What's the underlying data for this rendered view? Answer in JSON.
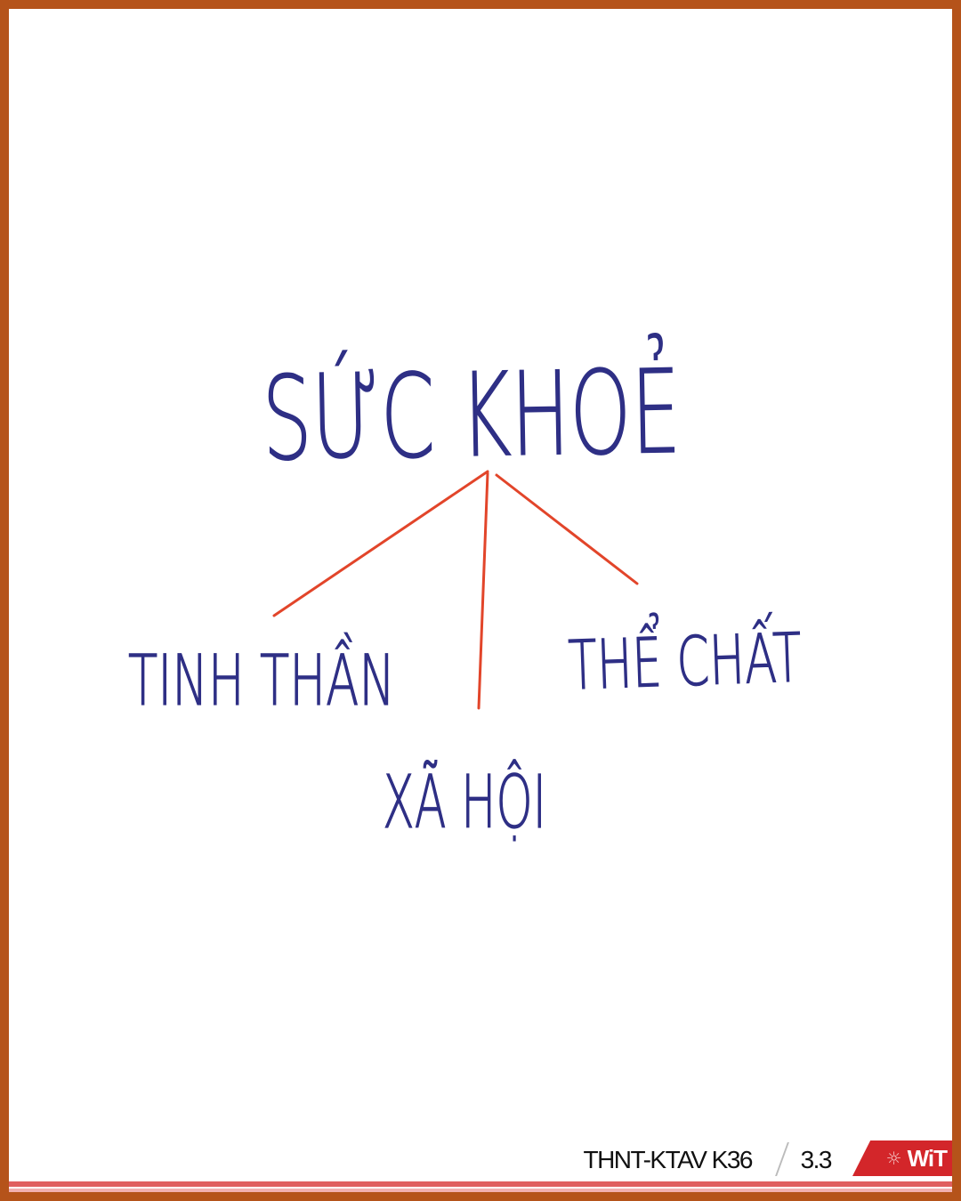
{
  "diagram": {
    "root": "SỨC KHOẺ",
    "branches": [
      "TINH THẦN",
      "XÃ HỘI",
      "THỂ CHẤT"
    ],
    "colors": {
      "ink": "#2e2f85",
      "connector": "#e2452a",
      "frame": "#b5531a"
    }
  },
  "footer": {
    "course": "THNT-KTAV K36",
    "page": "3.3",
    "logo_text": "WiT",
    "logo_icon": "sun-icon",
    "colors": {
      "logo_bg": "#d3262a",
      "rule": "#e06060"
    }
  }
}
